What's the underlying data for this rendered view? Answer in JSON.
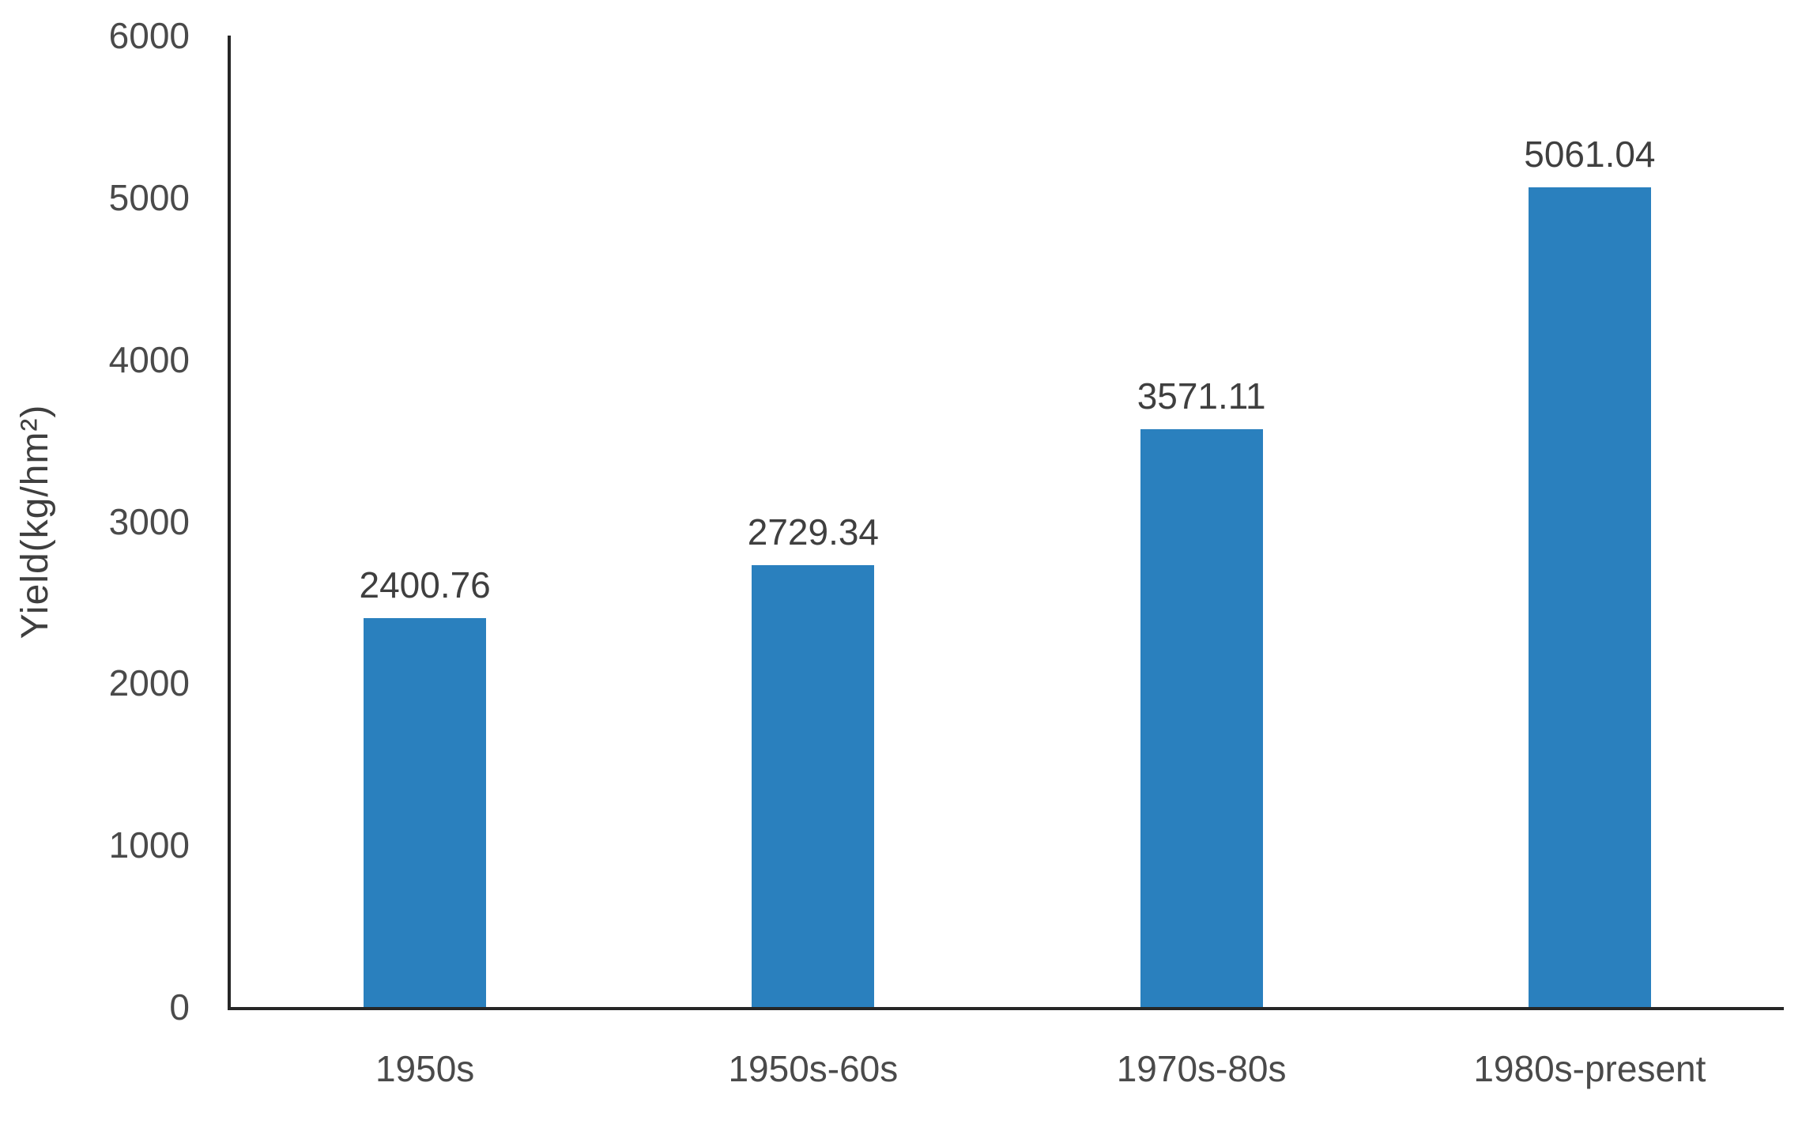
{
  "chart_data": {
    "type": "bar",
    "title": "",
    "categories": [
      "1950s",
      "1950s-60s",
      "1970s-80s",
      "1980s-present"
    ],
    "values": [
      2400.76,
      2729.34,
      3571.11,
      5061.04
    ],
    "value_labels": [
      "2400.76",
      "2729.34",
      "3571.11",
      "5061.04"
    ],
    "xlabel": "",
    "ylabel": "Yield(kg/hm²)",
    "ylim": [
      0,
      6000
    ],
    "yticks": [
      0,
      1000,
      2000,
      3000,
      4000,
      5000,
      6000
    ],
    "grid": false,
    "legend": "none",
    "bar_color": "#2A80BE",
    "axis_color": "#262626",
    "tick_text_color": "#4a4a4a",
    "label_text_color": "#3f3f3f"
  }
}
